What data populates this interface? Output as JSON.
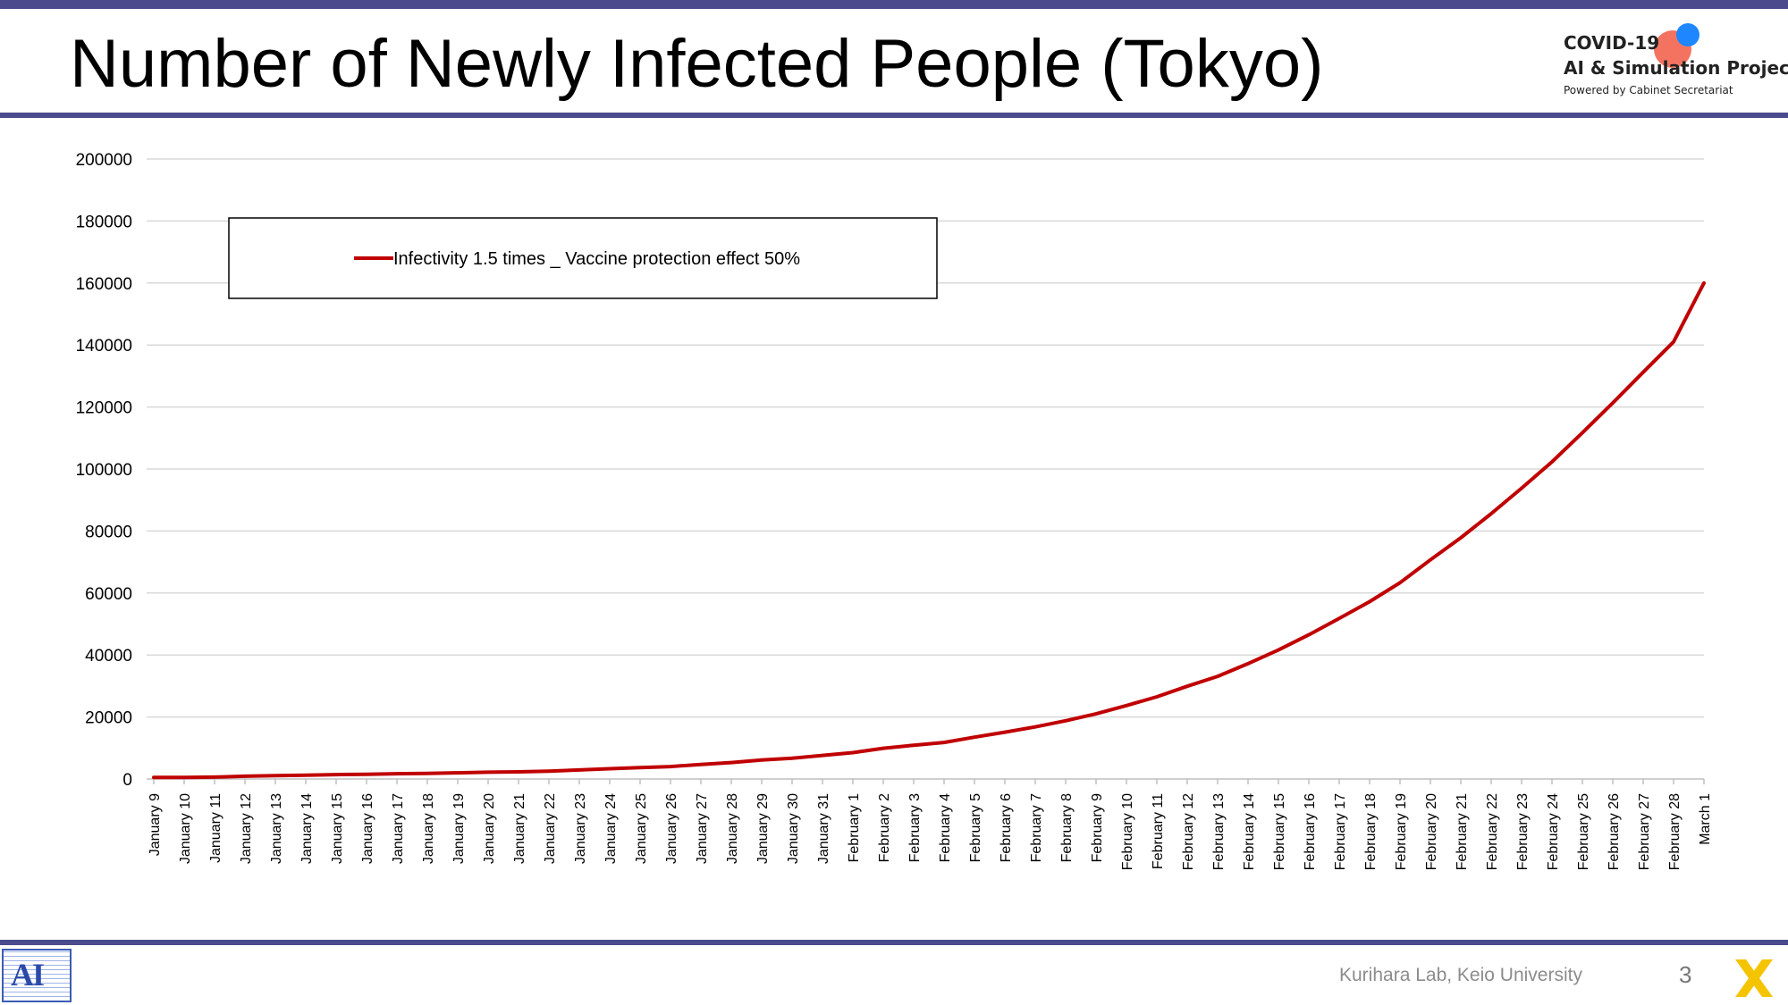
{
  "title": "Number of Newly Infected People (Tokyo)",
  "logo": {
    "line1": "COVID-19",
    "line2": "AI & Simulation Project",
    "line3": "Powered by Cabinet Secretariat"
  },
  "footer": {
    "credit": "Kurihara Lab, Keio University",
    "page_number": "3",
    "lab_logo_text": "AI"
  },
  "colors": {
    "accent": "#4a4a8c",
    "series": "#c00000",
    "grid": "#d9d9d9"
  },
  "chart_data": {
    "type": "line",
    "title": "",
    "xlabel": "",
    "ylabel": "",
    "ylim": [
      0,
      200000
    ],
    "yticks": [
      "0",
      "20000",
      "40000",
      "60000",
      "80000",
      "100000",
      "120000",
      "140000",
      "160000",
      "180000",
      "200000"
    ],
    "grid": true,
    "legend_position": "top-left",
    "categories": [
      "January 9",
      "January 10",
      "January 11",
      "January 12",
      "January 13",
      "January 14",
      "January 15",
      "January 16",
      "January 17",
      "January 18",
      "January 19",
      "January 20",
      "January 21",
      "January 22",
      "January 23",
      "January 24",
      "January 25",
      "January 26",
      "January 27",
      "January 28",
      "January 29",
      "January 30",
      "January 31",
      "February 1",
      "February 2",
      "February 3",
      "February 4",
      "February 5",
      "February 6",
      "February 7",
      "February 8",
      "February 9",
      "February 10",
      "February 11",
      "February 12",
      "February 13",
      "February 14",
      "February 15",
      "February 16",
      "February 17",
      "February 18",
      "February 19",
      "February 20",
      "February 21",
      "February 22",
      "February 23",
      "February 24",
      "February 25",
      "February 26",
      "February 27",
      "February 28",
      "March 1"
    ],
    "series": [
      {
        "name": "Infectivity 1.5 times _ Vaccine protection effect 50%",
        "color": "#c00000",
        "values": [
          500,
          500,
          600,
          900,
          1100,
          1200,
          1400,
          1500,
          1700,
          1800,
          2000,
          2200,
          2300,
          2500,
          2900,
          3300,
          3700,
          4000,
          4700,
          5300,
          6100,
          6700,
          7600,
          8500,
          9900,
          10900,
          11800,
          13500,
          15100,
          16800,
          18800,
          21000,
          23700,
          26500,
          29900,
          33100,
          37200,
          41600,
          46500,
          51800,
          57200,
          63300,
          70700,
          77800,
          85600,
          93800,
          102300,
          111700,
          121300,
          131200,
          141000,
          160000
        ]
      }
    ]
  }
}
